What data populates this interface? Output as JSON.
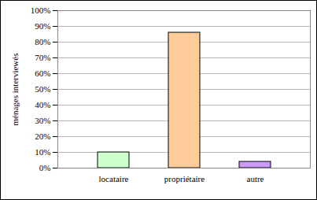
{
  "chart_data": {
    "type": "bar",
    "y_label": "ménages interviewés",
    "categories": [
      "locataire",
      "propriétaire",
      "autre"
    ],
    "values": [
      10,
      86,
      4
    ],
    "colors": [
      "#ccffcc",
      "#ffcc99",
      "#cc99ff"
    ],
    "ylim": [
      0,
      100
    ],
    "yticks": [
      {
        "value": 0,
        "label": "0%"
      },
      {
        "value": 10,
        "label": "10%"
      },
      {
        "value": 20,
        "label": "20%"
      },
      {
        "value": 30,
        "label": "30%"
      },
      {
        "value": 40,
        "label": "40%"
      },
      {
        "value": 50,
        "label": "50%"
      },
      {
        "value": 60,
        "label": "60%"
      },
      {
        "value": 70,
        "label": "70%"
      },
      {
        "value": 80,
        "label": "80%"
      },
      {
        "value": 90,
        "label": "90%"
      },
      {
        "value": 100,
        "label": "100%"
      }
    ],
    "grid": true
  }
}
